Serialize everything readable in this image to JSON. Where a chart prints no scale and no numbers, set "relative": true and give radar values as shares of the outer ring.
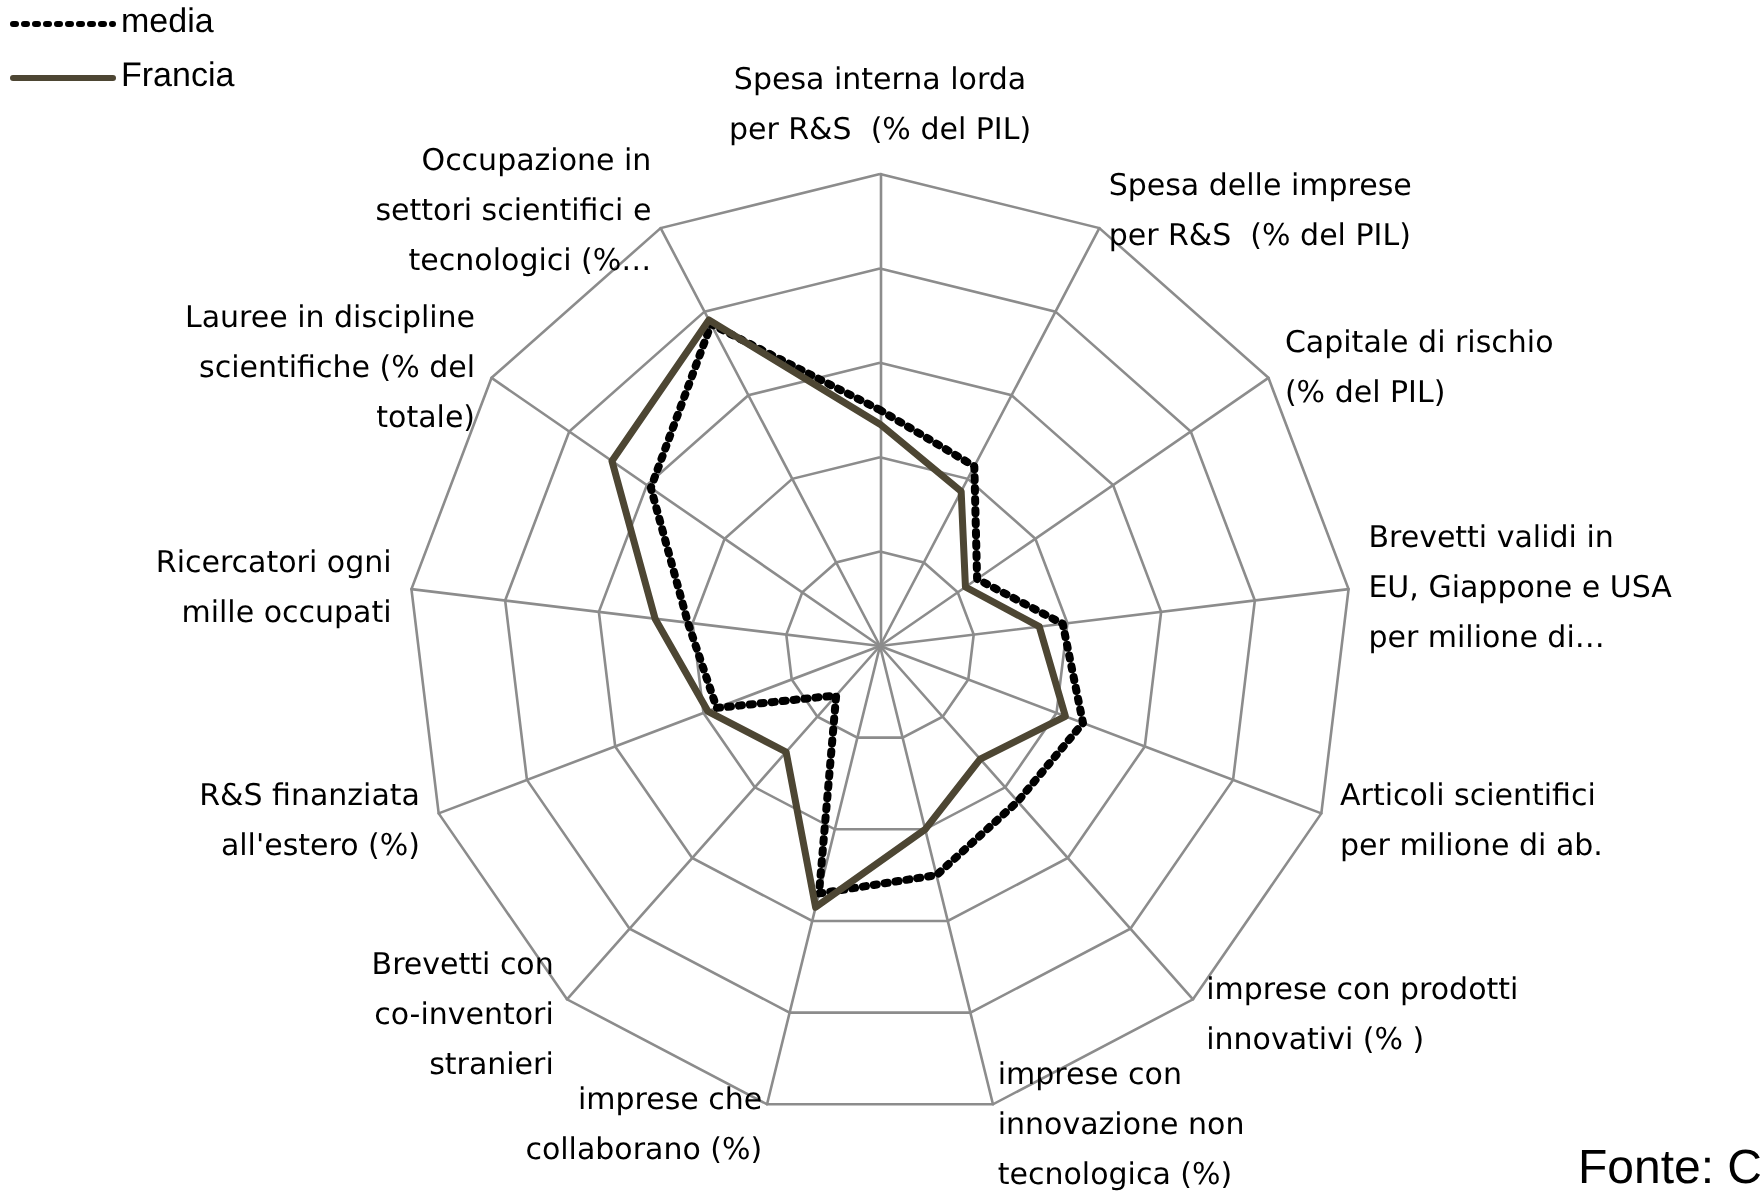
{
  "chart_data": {
    "type": "radar",
    "relative": true,
    "grid": true,
    "legend": "top left",
    "marker": "none",
    "categories": [
      "Spesa interna lorda per R&S  (% del PIL)",
      "Spesa delle imprese per R&S  (% del PIL)",
      "Capitale di rischio (% del PIL)",
      "Brevetti validi in EU, Giappone e USA per milione di…",
      "Articoli scientifici per milione di ab.",
      "imprese con prodotti innovativi (% )",
      "imprese con innovazione non tecnologica (%)",
      "imprese che collaborano (%)",
      "Brevetti con co-inventori stranieri",
      "R&S finanziata all'estero (%)",
      "Ricercatori ogni mille occupati",
      "Lauree in discipline scientifiche (% del totale)",
      "Occupazione in settori scientifici e tecnologici (%…"
    ],
    "series": [
      {
        "name": "media",
        "color": "#000000",
        "line_style": "dotted",
        "values": [
          0.5,
          0.43,
          0.25,
          0.39,
          0.46,
          0.44,
          0.5,
          0.54,
          0.14,
          0.37,
          0.41,
          0.59,
          0.77
        ]
      },
      {
        "name": "Francia",
        "color": "#4d4633",
        "line_style": "solid",
        "values": [
          0.47,
          0.37,
          0.22,
          0.34,
          0.42,
          0.32,
          0.4,
          0.57,
          0.3,
          0.39,
          0.48,
          0.69,
          0.78
        ]
      }
    ],
    "annotations": [
      "Fonte: C"
    ]
  }
}
